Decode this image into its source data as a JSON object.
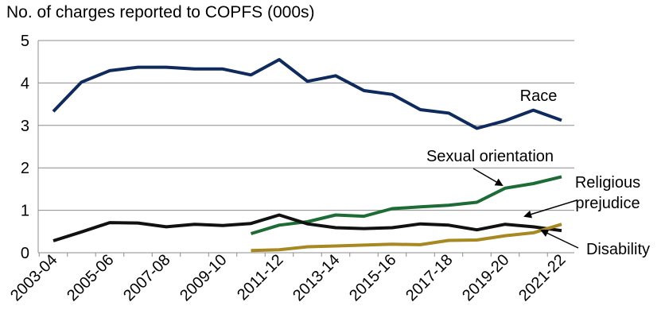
{
  "chart_data": {
    "type": "line",
    "title": "No. of charges reported to COPFS (000s)",
    "xlabel": "",
    "ylabel": "",
    "ylim": [
      0,
      5
    ],
    "yticks": [
      "0",
      "1",
      "2",
      "3",
      "4",
      "5"
    ],
    "grid": true,
    "categories": [
      "2003-04",
      "2004-05",
      "2005-06",
      "2006-07",
      "2007-08",
      "2008-09",
      "2009-10",
      "2010-11",
      "2011-12",
      "2012-13",
      "2013-14",
      "2014-15",
      "2015-16",
      "2016-17",
      "2017-18",
      "2018-19",
      "2019-20",
      "2020-21",
      "2021-22"
    ],
    "tick_labels": [
      "2003-04",
      "2005-06",
      "2007-08",
      "2009-10",
      "2011-12",
      "2013-14",
      "2015-16",
      "2017-18",
      "2019-20",
      "2021-22"
    ],
    "series": [
      {
        "name": "Race",
        "color": "#0f2a5c",
        "values": [
          3.33,
          4.02,
          4.29,
          4.37,
          4.37,
          4.33,
          4.33,
          4.19,
          4.55,
          4.04,
          4.17,
          3.82,
          3.73,
          3.37,
          3.29,
          2.93,
          3.11,
          3.36,
          3.12
        ]
      },
      {
        "name": "Sexual orientation",
        "color": "#1d6b35",
        "values": [
          null,
          null,
          null,
          null,
          null,
          null,
          null,
          0.45,
          0.65,
          0.73,
          0.89,
          0.86,
          1.04,
          1.08,
          1.12,
          1.19,
          1.52,
          1.63,
          1.79
        ]
      },
      {
        "name": "Religious prejudice",
        "color": "#111111",
        "values": [
          0.28,
          0.49,
          0.71,
          0.7,
          0.61,
          0.67,
          0.64,
          0.69,
          0.89,
          0.68,
          0.59,
          0.57,
          0.59,
          0.68,
          0.65,
          0.54,
          0.67,
          0.61,
          0.52
        ]
      },
      {
        "name": "Disability",
        "color": "#a88820",
        "values": [
          null,
          null,
          null,
          null,
          null,
          null,
          null,
          0.05,
          0.07,
          0.14,
          0.16,
          0.18,
          0.2,
          0.19,
          0.29,
          0.3,
          0.4,
          0.47,
          0.67
        ]
      }
    ],
    "annotations": [
      {
        "series": "Race",
        "text": "Race"
      },
      {
        "series": "Sexual orientation",
        "text": "Sexual orientation"
      },
      {
        "series": "Religious prejudice",
        "text_lines": [
          "Religious",
          "prejudice"
        ]
      },
      {
        "series": "Disability",
        "text": "Disability"
      }
    ]
  }
}
